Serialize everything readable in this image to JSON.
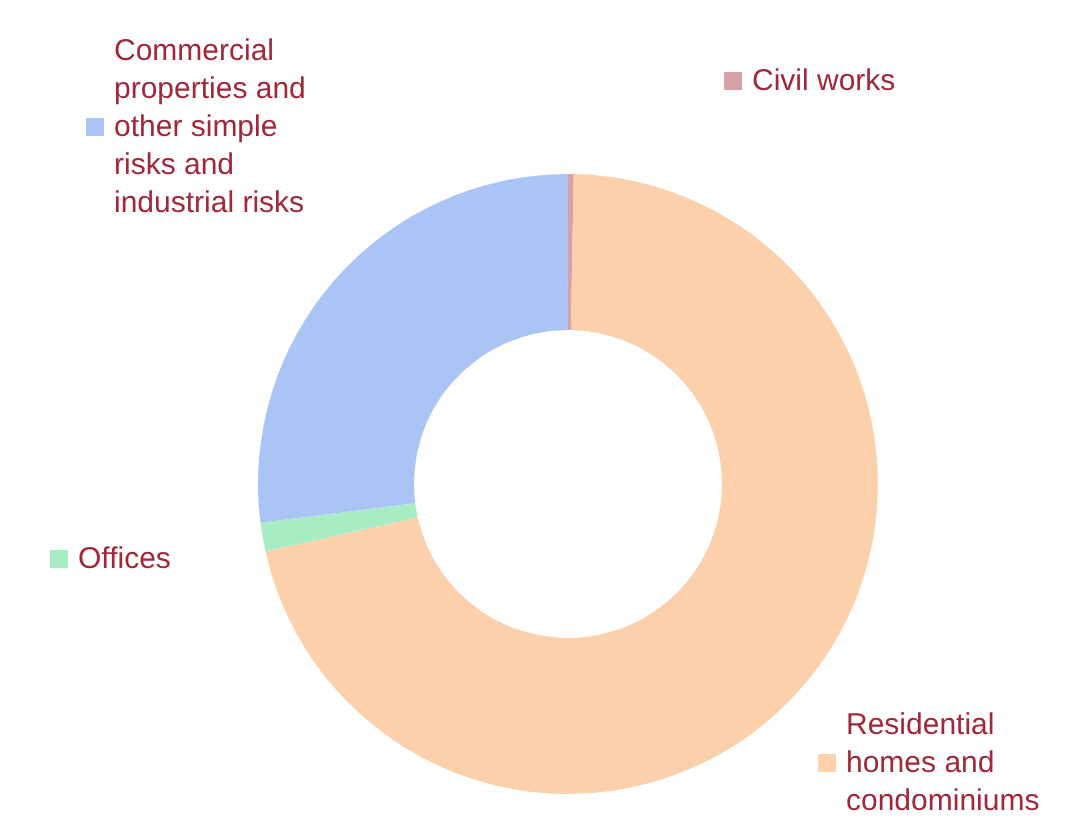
{
  "chart_data": {
    "type": "donut",
    "categories": [
      "Civil works",
      "Residential homes and condominiums",
      "Offices",
      "Commercial properties and other simple risks and industrial risks"
    ],
    "values": [
      0.3,
      71.2,
      1.5,
      27
    ],
    "colors": [
      "#d9a0a8",
      "#fbd0ab",
      "#a8ecc4",
      "#a9c4f5"
    ],
    "legend": "top left"
  }
}
